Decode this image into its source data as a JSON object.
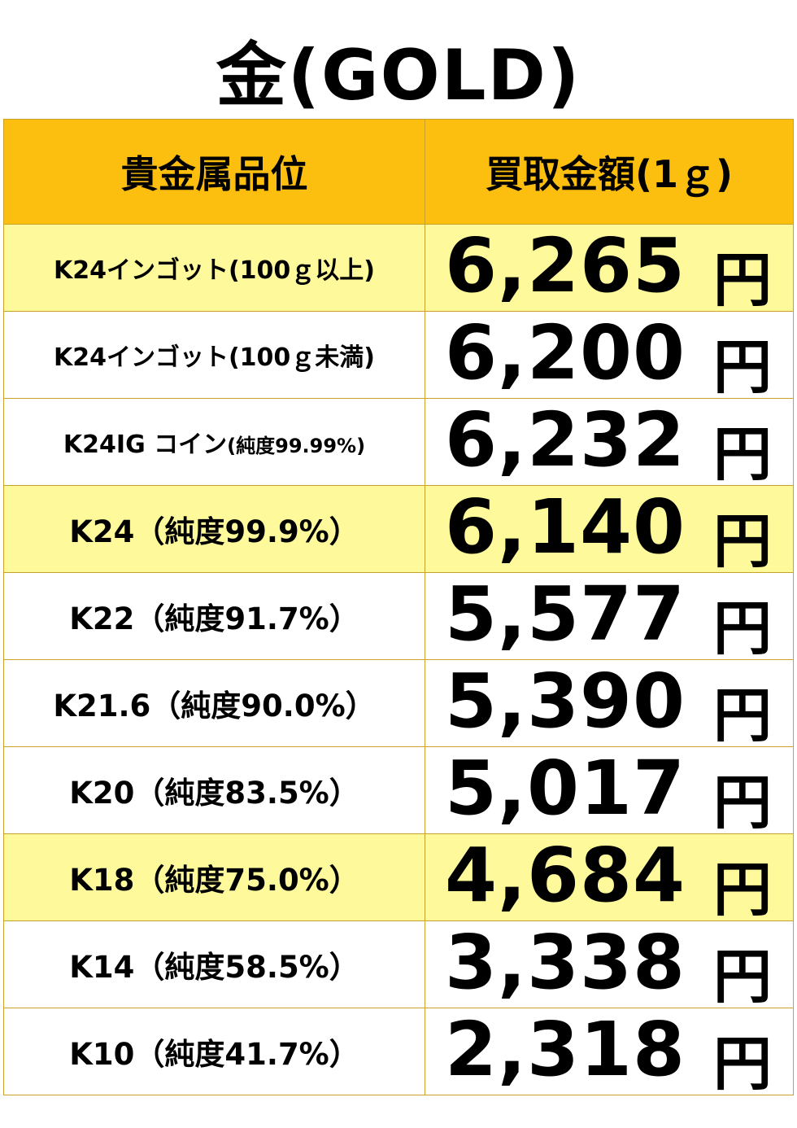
{
  "title": "金(GOLD)",
  "colors": {
    "header_bg": "#fcbf10",
    "highlight_row_bg": "#fef99a",
    "border": "#c9a227"
  },
  "table": {
    "headers": [
      "貴金属品位",
      "買取金額(1ｇ)"
    ],
    "unit": "円",
    "rows": [
      {
        "grade": "K24インゴット(100ｇ以上)",
        "price": "6,265",
        "highlight": true
      },
      {
        "grade": "K24インゴット(100ｇ未満)",
        "price": "6,200",
        "highlight": false
      },
      {
        "grade": "K24IG コイン",
        "grade_sub": "(純度99.99%)",
        "price": "6,232",
        "highlight": false
      },
      {
        "grade": "K24（純度99.9%）",
        "price": "6,140",
        "highlight": true
      },
      {
        "grade": "K22（純度91.7%）",
        "price": "5,577",
        "highlight": false
      },
      {
        "grade": "K21.6（純度90.0%）",
        "price": "5,390",
        "highlight": false
      },
      {
        "grade": "K20（純度83.5%）",
        "price": "5,017",
        "highlight": false
      },
      {
        "grade": "K18（純度75.0%）",
        "price": "4,684",
        "highlight": true
      },
      {
        "grade": "K14（純度58.5%）",
        "price": "3,338",
        "highlight": false
      },
      {
        "grade": "K10（純度41.7%）",
        "price": "2,318",
        "highlight": false
      }
    ]
  }
}
